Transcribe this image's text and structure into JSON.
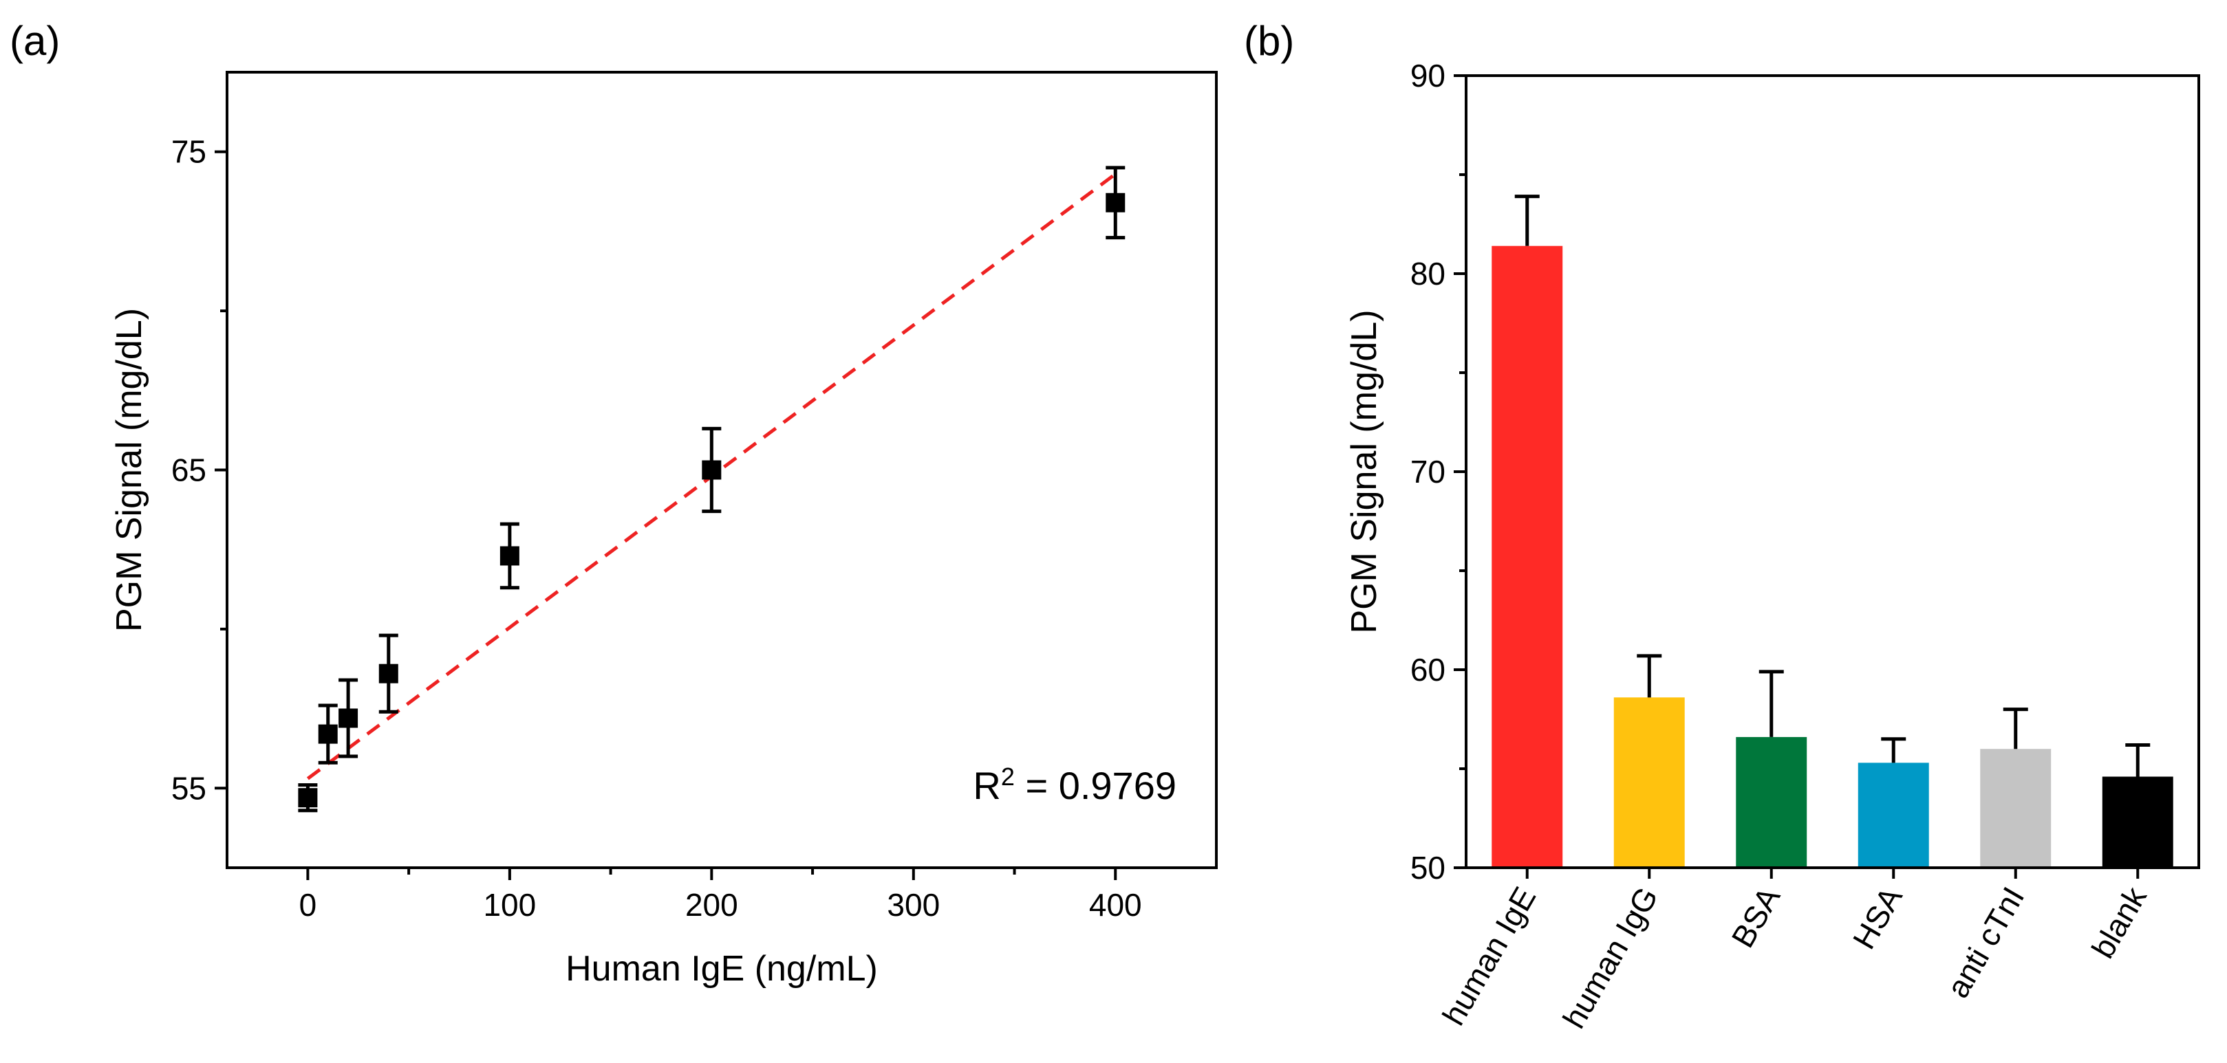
{
  "chart_data": [
    {
      "panel": "(a)",
      "type": "scatter",
      "xlabel": "Human IgE (ng/mL)",
      "ylabel": "PGM Signal (mg/dL)",
      "xlim": [
        -40,
        450
      ],
      "ylim": [
        52.5,
        77.5
      ],
      "xticks": [
        0,
        100,
        200,
        300,
        400
      ],
      "xminor": [
        50,
        150,
        250,
        350
      ],
      "yticks": [
        55,
        65,
        75
      ],
      "yminor": [
        60,
        70
      ],
      "points": [
        {
          "x": 0,
          "y": 54.7,
          "err": 0.4
        },
        {
          "x": 10,
          "y": 56.7,
          "err": 0.9
        },
        {
          "x": 20,
          "y": 57.2,
          "err": 1.2
        },
        {
          "x": 40,
          "y": 58.6,
          "err": 1.2
        },
        {
          "x": 100,
          "y": 62.3,
          "err": 1.0
        },
        {
          "x": 200,
          "y": 65.0,
          "err": 1.3
        },
        {
          "x": 400,
          "y": 73.4,
          "err": 1.1
        }
      ],
      "fit": {
        "x0": 0,
        "y0": 55.3,
        "x1": 400,
        "y1": 74.3,
        "color": "#ee2222",
        "style": "dashed"
      },
      "annotation": {
        "base": "R",
        "sup": "2",
        "rest": " = 0.9769"
      }
    },
    {
      "panel": "(b)",
      "type": "bar",
      "ylabel": "PGM Signal (mg/dL)",
      "ylim": [
        50,
        90
      ],
      "yticks": [
        50,
        60,
        70,
        80,
        90
      ],
      "yminor": [
        55,
        65,
        75,
        85
      ],
      "categories": [
        "human IgE",
        "human IgG",
        "BSA",
        "HSA",
        "anti cTnI",
        "blank"
      ],
      "values": [
        81.4,
        58.6,
        56.6,
        55.3,
        56.0,
        54.6
      ],
      "errors": [
        2.5,
        2.1,
        3.3,
        1.2,
        2.0,
        1.6
      ],
      "colors": [
        "#ff2a26",
        "#ffc20e",
        "#00773b",
        "#0099c6",
        "#c4c4c4",
        "#000000"
      ]
    }
  ]
}
